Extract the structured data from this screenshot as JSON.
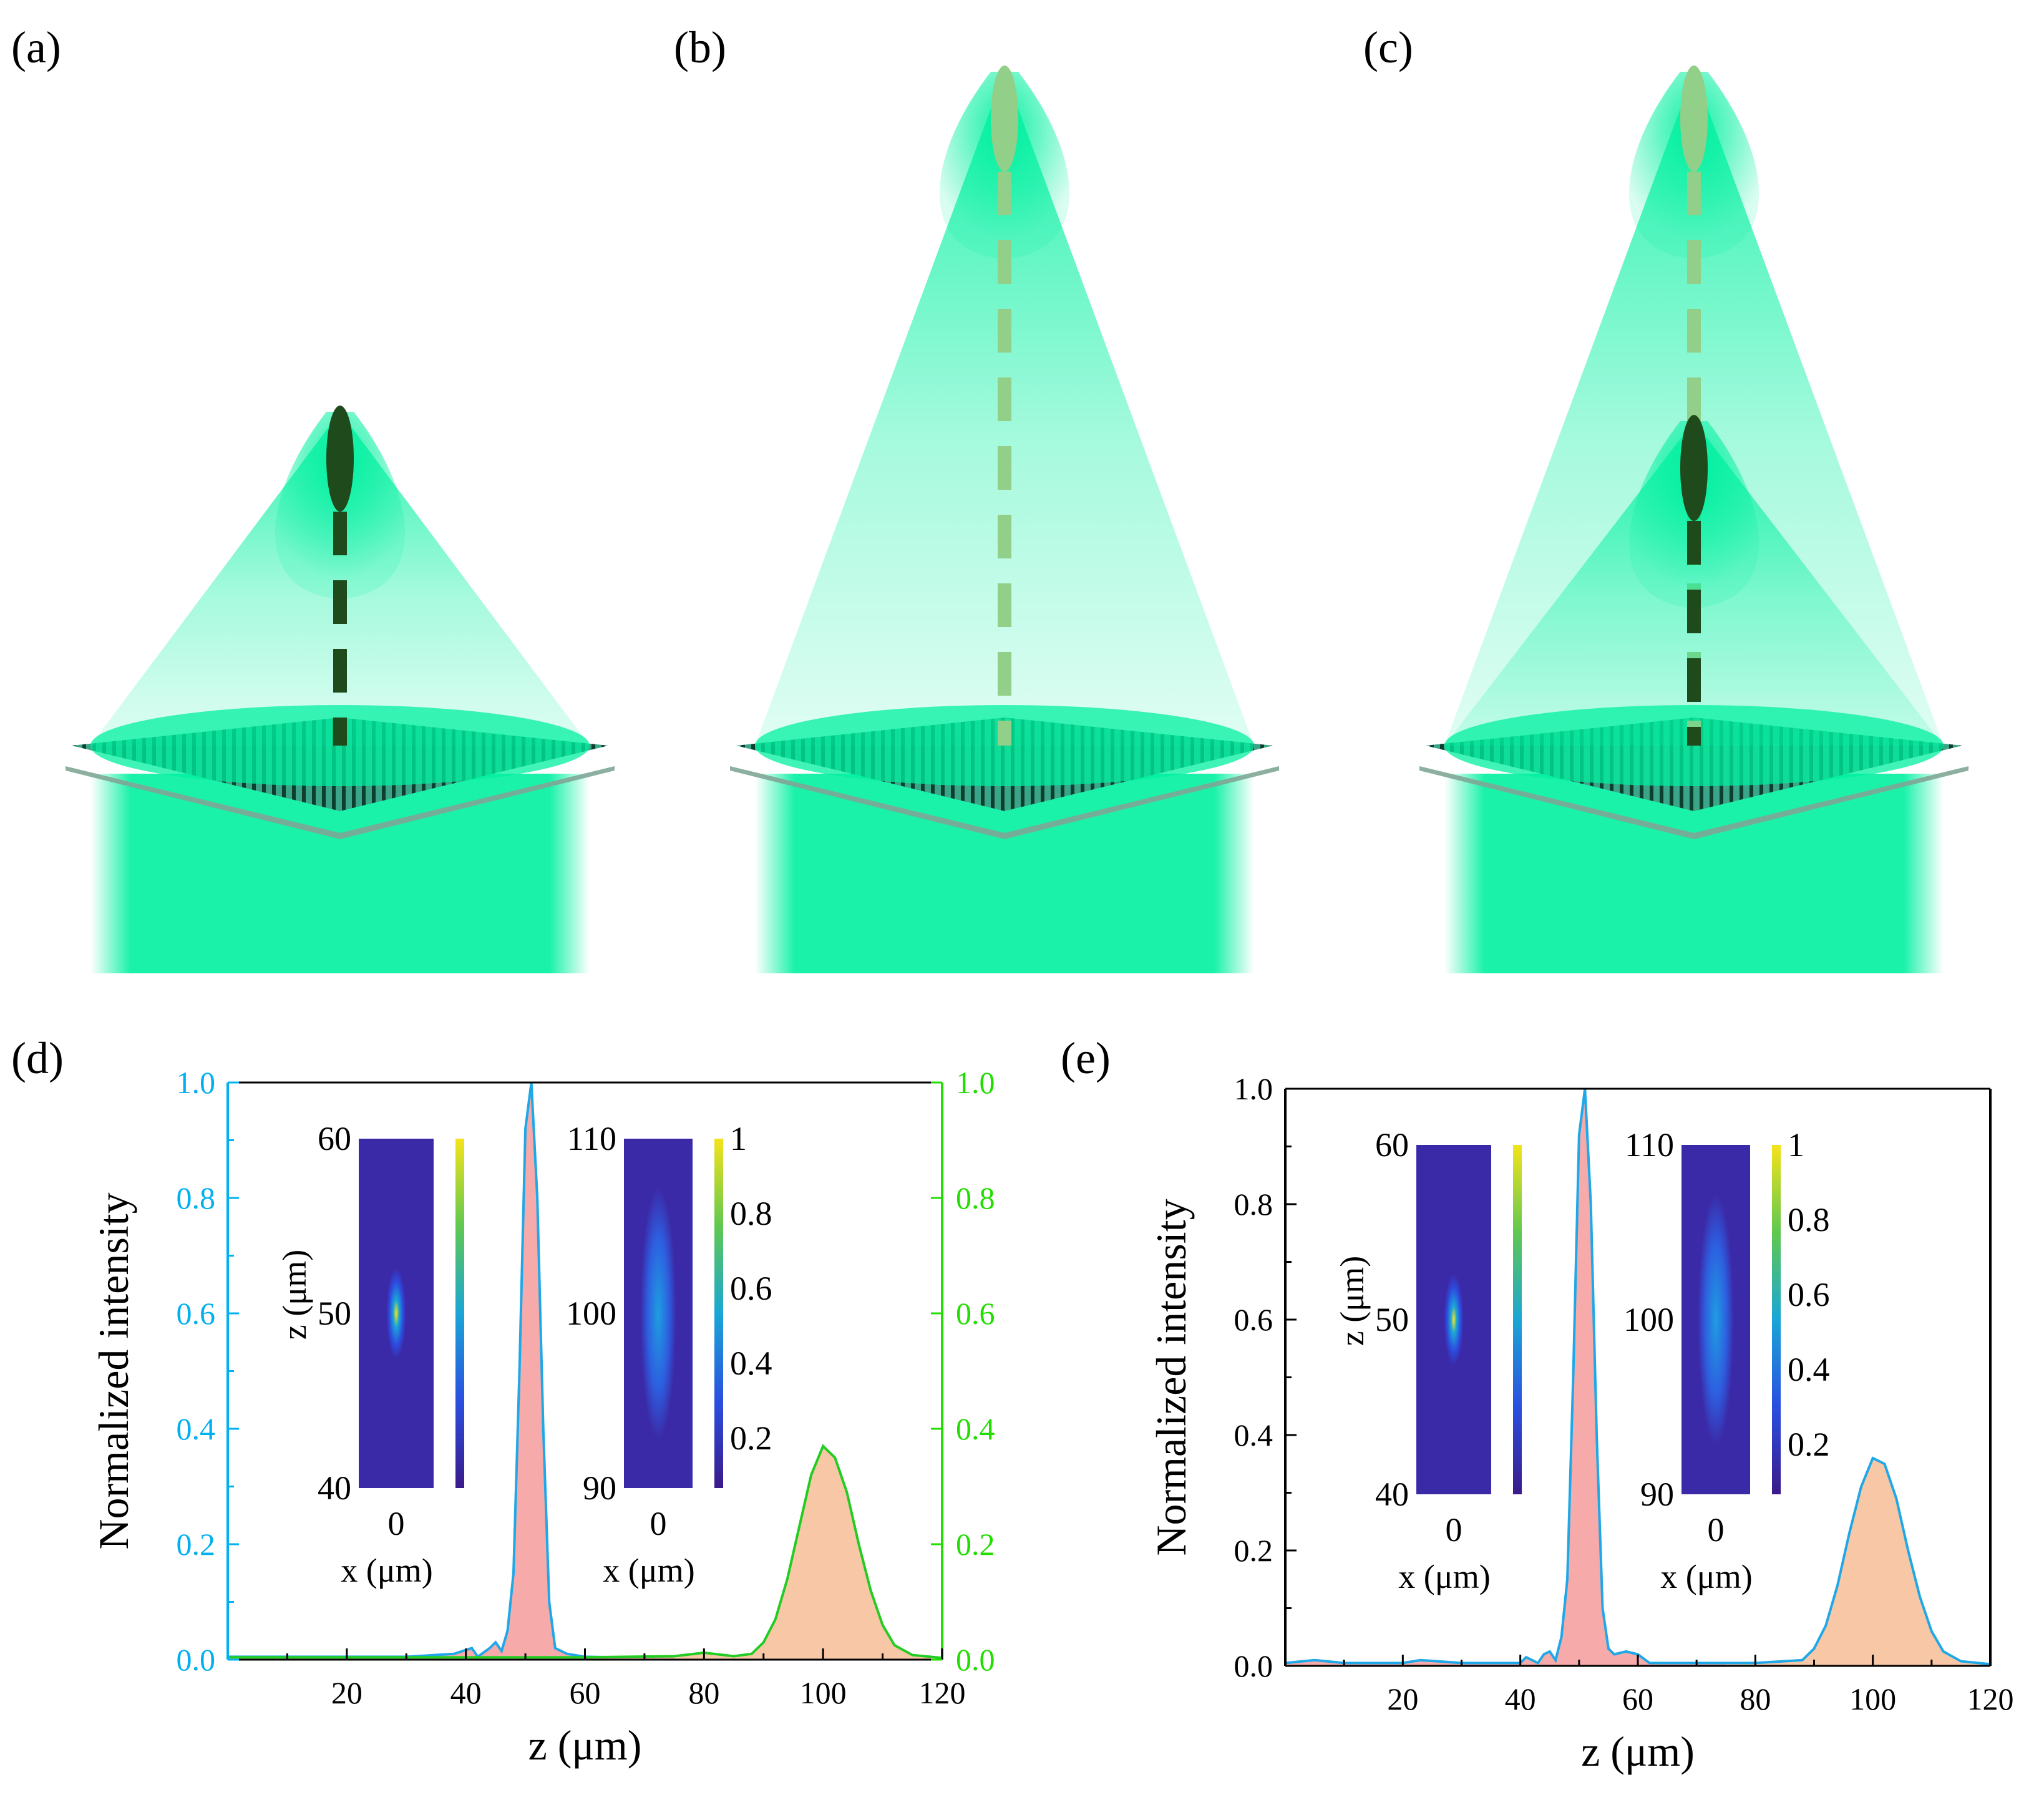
{
  "panel_labels": {
    "a": "(a)",
    "b": "(b)",
    "c": "(c)",
    "d": "(d)",
    "e": "(e)"
  },
  "colors": {
    "beam": "#00f0a0",
    "focus_dark": "#1f4a1c",
    "focus_light": "#92cf88",
    "left_axis": "#00b0f0",
    "right_axis": "#22dd00",
    "curve_blue": "#1ea8e8",
    "curve_green": "#22cc22",
    "fill_pink": "#f6aaaa",
    "fill_orange": "#f7c7a6"
  },
  "chart_data": [
    {
      "id": "d",
      "type": "area",
      "xlabel": "z (μm)",
      "ylabel": "Normalized intensity",
      "xlim": [
        0,
        120
      ],
      "ylim": [
        0,
        1.0
      ],
      "xticks": [
        "20",
        "40",
        "60",
        "80",
        "100",
        "120"
      ],
      "yticks": [
        "0.0",
        "0.2",
        "0.4",
        "0.6",
        "0.8",
        "1.0"
      ],
      "right_yticks": [
        "0.0",
        "0.2",
        "0.4",
        "0.6",
        "0.8",
        "1.0"
      ],
      "series": [
        {
          "axis": "left",
          "x": [
            0,
            10,
            20,
            30,
            38,
            41,
            42,
            44,
            45,
            46,
            47,
            48,
            49,
            50,
            51,
            52,
            53,
            54,
            55,
            57,
            60,
            70,
            120
          ],
          "y": [
            0.005,
            0.005,
            0.005,
            0.005,
            0.01,
            0.02,
            0.005,
            0.02,
            0.03,
            0.015,
            0.05,
            0.15,
            0.5,
            0.92,
            1.0,
            0.8,
            0.4,
            0.1,
            0.02,
            0.01,
            0.005,
            0.003,
            0.003
          ]
        },
        {
          "axis": "right",
          "x": [
            0,
            20,
            40,
            60,
            75,
            80,
            85,
            88,
            90,
            92,
            94,
            96,
            98,
            100,
            102,
            104,
            106,
            108,
            110,
            112,
            115,
            120
          ],
          "y": [
            0.004,
            0.004,
            0.004,
            0.004,
            0.006,
            0.012,
            0.006,
            0.01,
            0.03,
            0.07,
            0.14,
            0.23,
            0.32,
            0.37,
            0.35,
            0.29,
            0.2,
            0.12,
            0.06,
            0.025,
            0.008,
            0.003
          ]
        }
      ],
      "insets": [
        {
          "ylabel": "z (μm)",
          "yticks": [
            "60",
            "50",
            "40"
          ],
          "xtick": "0",
          "xlabel": "x (μm)"
        },
        {
          "yticks": [
            "110",
            "100",
            "90"
          ],
          "xtick": "0",
          "xlabel": "x (μm)",
          "colorbar_ticks": [
            "1",
            "0.8",
            "0.6",
            "0.4",
            "0.2"
          ]
        }
      ]
    },
    {
      "id": "e",
      "type": "area",
      "xlabel": "z (μm)",
      "ylabel": "Normalized intensity",
      "xlim": [
        0,
        120
      ],
      "ylim": [
        0,
        1.0
      ],
      "xticks": [
        "20",
        "40",
        "60",
        "80",
        "100",
        "120"
      ],
      "yticks": [
        "0.0",
        "0.2",
        "0.4",
        "0.6",
        "0.8",
        "1.0"
      ],
      "series": [
        {
          "axis": "left",
          "x": [
            0,
            5,
            10,
            20,
            23,
            30,
            40,
            41,
            43,
            44,
            45,
            46,
            47,
            48,
            49,
            50,
            51,
            52,
            53,
            54,
            55,
            56,
            58,
            60,
            62,
            70,
            80,
            88,
            90,
            92,
            94,
            96,
            98,
            100,
            102,
            104,
            106,
            108,
            110,
            112,
            115,
            120
          ],
          "y": [
            0.005,
            0.01,
            0.005,
            0.005,
            0.01,
            0.005,
            0.005,
            0.015,
            0.005,
            0.02,
            0.025,
            0.01,
            0.05,
            0.15,
            0.5,
            0.92,
            1.0,
            0.8,
            0.4,
            0.1,
            0.03,
            0.02,
            0.025,
            0.02,
            0.005,
            0.005,
            0.005,
            0.01,
            0.03,
            0.07,
            0.14,
            0.23,
            0.31,
            0.36,
            0.35,
            0.29,
            0.2,
            0.12,
            0.06,
            0.025,
            0.008,
            0.003
          ]
        }
      ],
      "insets": [
        {
          "ylabel": "z (μm)",
          "yticks": [
            "60",
            "50",
            "40"
          ],
          "xtick": "0",
          "xlabel": "x (μm)"
        },
        {
          "yticks": [
            "110",
            "100",
            "90"
          ],
          "xtick": "0",
          "xlabel": "x (μm)",
          "colorbar_ticks": [
            "1",
            "0.8",
            "0.6",
            "0.4",
            "0.2"
          ]
        }
      ]
    }
  ]
}
